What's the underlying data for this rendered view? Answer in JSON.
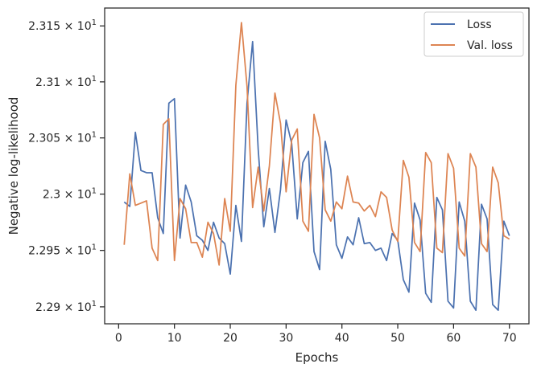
{
  "chart_data": {
    "type": "line",
    "xlabel": "Epochs",
    "ylabel": "Negative log-likelihood",
    "xlim": [
      -2.5,
      73.5
    ],
    "ylim": [
      22.885,
      23.166
    ],
    "y_scale": "log",
    "grid": false,
    "legend_position": "upper right",
    "x_ticks": [
      0,
      10,
      20,
      30,
      40,
      50,
      60,
      70
    ],
    "x_tick_labels": [
      "0",
      "10",
      "20",
      "30",
      "40",
      "50",
      "60",
      "70"
    ],
    "y_ticks": [
      22.9,
      22.95,
      23.0,
      23.05,
      23.1,
      23.15
    ],
    "y_tick_labels": [
      {
        "mant": "2.29",
        "exp": "1"
      },
      {
        "mant": "2.295",
        "exp": "1"
      },
      {
        "mant": "2.3",
        "exp": "1"
      },
      {
        "mant": "2.305",
        "exp": "1"
      },
      {
        "mant": "2.31",
        "exp": "1"
      },
      {
        "mant": "2.315",
        "exp": "1"
      }
    ],
    "series": [
      {
        "name": "Loss",
        "color": "#4c72b0",
        "x": [
          1,
          2,
          3,
          4,
          5,
          6,
          7,
          8,
          9,
          10,
          11,
          12,
          13,
          14,
          15,
          16,
          17,
          18,
          19,
          20,
          21,
          22,
          23,
          24,
          25,
          26,
          27,
          28,
          29,
          30,
          31,
          32,
          33,
          34,
          35,
          36,
          37,
          38,
          39,
          40,
          41,
          42,
          43,
          44,
          45,
          46,
          47,
          48,
          49,
          50,
          51,
          52,
          53,
          54,
          55,
          56,
          57,
          58,
          59,
          60,
          61,
          62,
          63,
          64,
          65,
          66,
          67,
          68,
          69,
          70
        ],
        "y": [
          22.993,
          22.989,
          23.055,
          23.021,
          23.019,
          23.019,
          22.979,
          22.965,
          23.081,
          23.085,
          22.961,
          23.008,
          22.993,
          22.963,
          22.959,
          22.95,
          22.975,
          22.961,
          22.956,
          22.929,
          22.99,
          22.958,
          23.081,
          23.136,
          23.04,
          22.971,
          23.005,
          22.966,
          23.004,
          23.066,
          23.045,
          22.978,
          23.028,
          23.038,
          22.949,
          22.933,
          23.047,
          23.022,
          22.955,
          22.943,
          22.962,
          22.955,
          22.979,
          22.956,
          22.957,
          22.95,
          22.952,
          22.941,
          22.965,
          22.959,
          22.924,
          22.913,
          22.992,
          22.977,
          22.912,
          22.904,
          22.997,
          22.986,
          22.905,
          22.899,
          22.993,
          22.976,
          22.905,
          22.897,
          22.991,
          22.978,
          22.902,
          22.897,
          22.976,
          22.963
        ]
      },
      {
        "name": "Val. loss",
        "color": "#dd8452",
        "x": [
          1,
          2,
          3,
          4,
          5,
          6,
          7,
          8,
          9,
          10,
          11,
          12,
          13,
          14,
          15,
          16,
          17,
          18,
          19,
          20,
          21,
          22,
          23,
          24,
          25,
          26,
          27,
          28,
          29,
          30,
          31,
          32,
          33,
          34,
          35,
          36,
          37,
          38,
          39,
          40,
          41,
          42,
          43,
          44,
          45,
          46,
          47,
          48,
          49,
          50,
          51,
          52,
          53,
          54,
          55,
          56,
          57,
          58,
          59,
          60,
          61,
          62,
          63,
          64,
          65,
          66,
          67,
          68,
          69,
          70
        ],
        "y": [
          22.955,
          23.018,
          22.99,
          22.992,
          22.994,
          22.952,
          22.941,
          23.062,
          23.067,
          22.941,
          22.996,
          22.987,
          22.957,
          22.957,
          22.944,
          22.975,
          22.965,
          22.937,
          22.996,
          22.967,
          23.097,
          23.153,
          23.096,
          22.988,
          23.024,
          22.985,
          23.025,
          23.09,
          23.063,
          23.002,
          23.048,
          23.058,
          22.976,
          22.967,
          23.071,
          23.05,
          22.986,
          22.976,
          22.993,
          22.987,
          23.016,
          22.993,
          22.992,
          22.985,
          22.99,
          22.98,
          23.002,
          22.997,
          22.968,
          22.958,
          23.03,
          23.015,
          22.957,
          22.949,
          23.037,
          23.028,
          22.952,
          22.948,
          23.036,
          23.023,
          22.952,
          22.945,
          23.036,
          23.024,
          22.956,
          22.949,
          23.024,
          23.01,
          22.963,
          22.96
        ]
      }
    ]
  }
}
